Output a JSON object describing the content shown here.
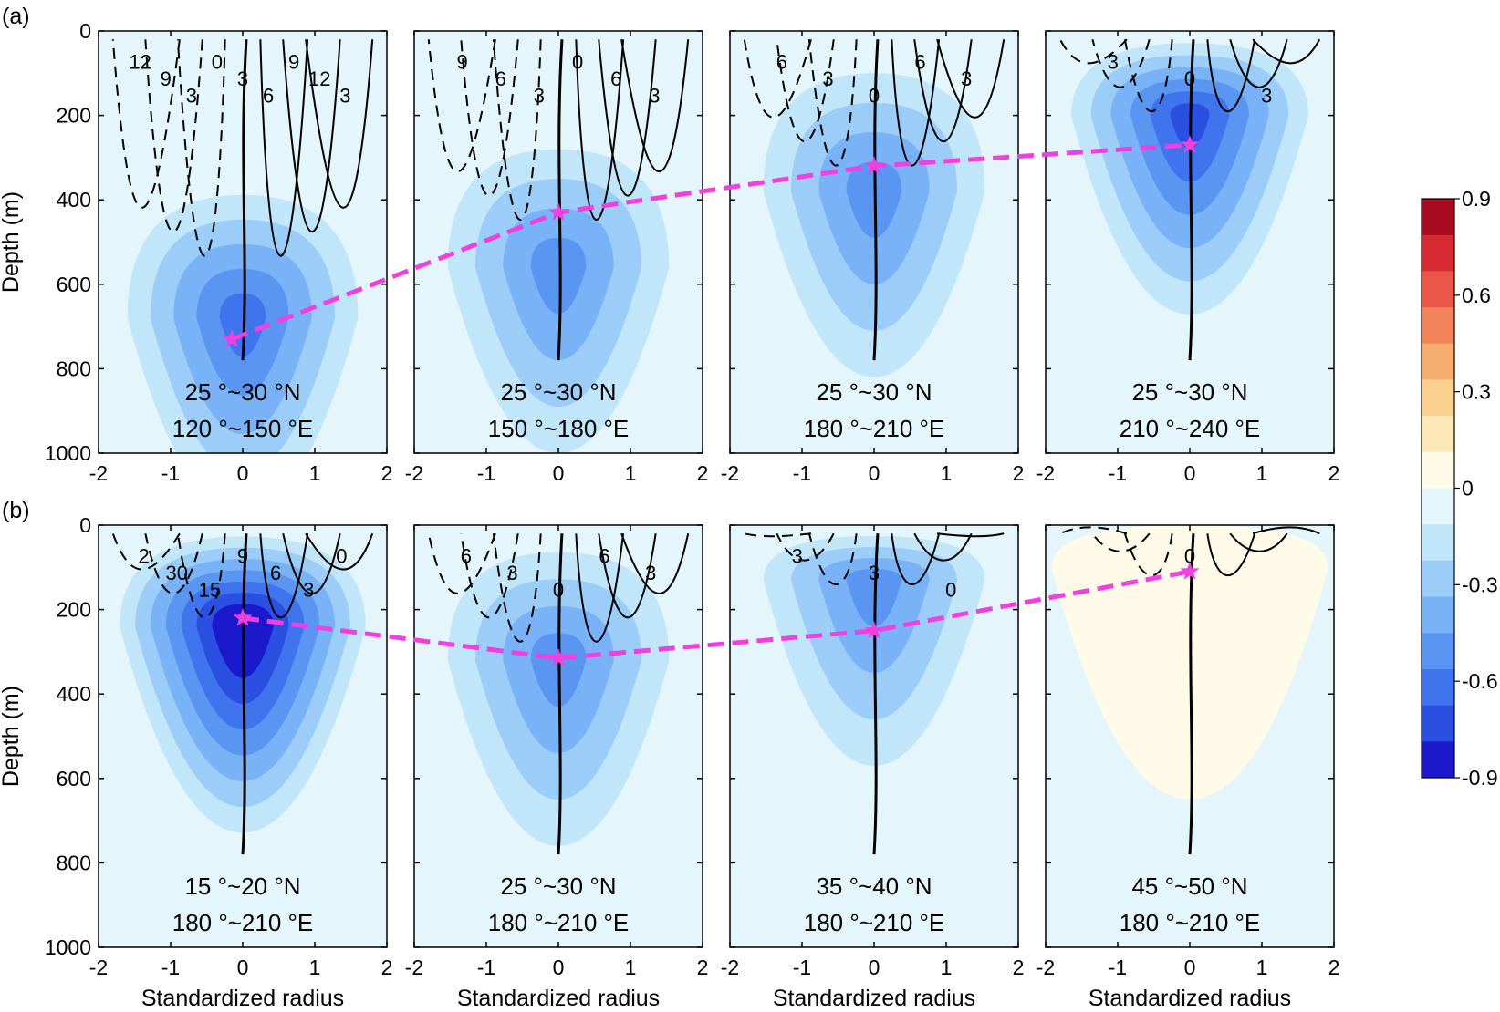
{
  "chart_data": {
    "type": "heatmap",
    "description_units": {
      "x": "Standardized radius",
      "y": "Depth (m)"
    },
    "xlabel": "Standardized radius",
    "ylabel": "Depth (m)",
    "xlim": [
      -2,
      2
    ],
    "ylim": [
      0,
      1000
    ],
    "y_inverted": true,
    "x_ticks": [
      "-2",
      "-1",
      "0",
      "1",
      "2"
    ],
    "y_ticks": [
      "0",
      "200",
      "400",
      "600",
      "800",
      "1000"
    ],
    "colorbar": {
      "ticks": [
        "0.9",
        "0.6",
        "0.3",
        "0",
        "-0.3",
        "-0.6",
        "-0.9"
      ],
      "range": [
        -0.9,
        0.9
      ],
      "step": 0.1,
      "colors": [
        "#1a1acc",
        "#2b4fe0",
        "#3f74ee",
        "#5a95f2",
        "#79b2f6",
        "#9ccdf8",
        "#c2e6f9",
        "#e4f6fb",
        "#fffbe8",
        "#fde9b6",
        "#fcd08f",
        "#f8ad70",
        "#f3835a",
        "#ea5647",
        "#d62b33",
        "#a80a1f"
      ]
    },
    "rows": [
      {
        "tag": "(a)",
        "panels": [
          {
            "lat": "25 °~30 °N",
            "lon": "120 °~150 °E",
            "star": {
              "x": -0.15,
              "y": 730
            },
            "core_depth": 680,
            "core_strength": -0.55
          },
          {
            "lat": "25 °~30 °N",
            "lon": "150 °~180 °E",
            "star": {
              "x": 0.0,
              "y": 430
            },
            "core_depth": 560,
            "core_strength": -0.45
          },
          {
            "lat": "25 °~30 °N",
            "lon": "180 °~210 °E",
            "star": {
              "x": 0.0,
              "y": 320
            },
            "core_depth": 380,
            "core_strength": -0.45
          },
          {
            "lat": "25 °~30 °N",
            "lon": "210 °~240 °E",
            "star": {
              "x": 0.0,
              "y": 270
            },
            "core_depth": 200,
            "core_strength": -0.7
          }
        ],
        "contour_labels": [
          [
            "12",
            "9",
            "3",
            "0",
            "3",
            "6",
            "9",
            "12",
            "3"
          ],
          [
            "9",
            "6",
            "3",
            "0",
            "6",
            "3"
          ],
          [
            "6",
            "3",
            "0",
            "6",
            "3"
          ],
          [
            "3",
            "0",
            "3"
          ]
        ]
      },
      {
        "tag": "(b)",
        "panels": [
          {
            "lat": "15 °~20 °N",
            "lon": "180 °~210 °E",
            "star": {
              "x": 0.0,
              "y": 220
            },
            "core_depth": 240,
            "core_strength": -0.9
          },
          {
            "lat": "25 °~30 °N",
            "lon": "180 °~210 °E",
            "star": {
              "x": 0.0,
              "y": 315
            },
            "core_depth": 320,
            "core_strength": -0.45
          },
          {
            "lat": "35 °~40 °N",
            "lon": "180 °~210 °E",
            "star": {
              "x": 0.0,
              "y": 250
            },
            "core_depth": 130,
            "core_strength": -0.45
          },
          {
            "lat": "45 °~50 °N",
            "lon": "180 °~210 °E",
            "star": {
              "x": 0.0,
              "y": 110
            },
            "core_depth": 100,
            "core_strength": 0.1
          }
        ],
        "contour_labels": [
          [
            "2",
            "30",
            "15",
            "9",
            "6",
            "3",
            "0"
          ],
          [
            "6",
            "3",
            "0",
            "6",
            "3"
          ],
          [
            "3",
            "3",
            "0"
          ],
          [
            "0"
          ]
        ]
      }
    ]
  }
}
